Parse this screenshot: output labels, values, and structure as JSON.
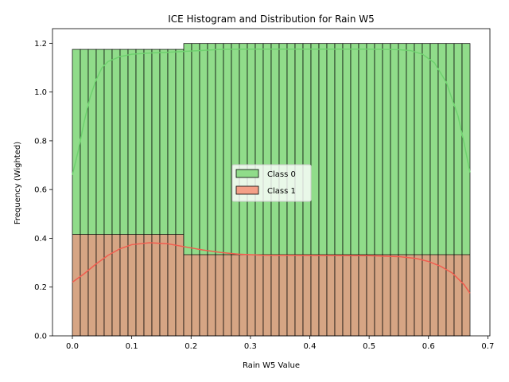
{
  "chart_data": {
    "type": "bar",
    "title": "ICE Histogram and Distribution for Rain W5",
    "xlabel": "Rain W5 Value",
    "ylabel": "Frequency (Wighted)",
    "xlim": [
      -0.0335,
      0.7035
    ],
    "ylim": [
      0,
      1.26
    ],
    "xticks": [
      "0.0",
      "0.1",
      "0.2",
      "0.3",
      "0.4",
      "0.5",
      "0.6",
      "0.7"
    ],
    "xtick_values": [
      0,
      0.1,
      0.2,
      0.3,
      0.4,
      0.5,
      0.6,
      0.7
    ],
    "yticks": [
      "0.0",
      "0.2",
      "0.4",
      "0.6",
      "0.8",
      "1.0",
      "1.2"
    ],
    "ytick_values": [
      0,
      0.2,
      0.4,
      0.6,
      0.8,
      1.0,
      1.2
    ],
    "bins": {
      "start": 0,
      "end": 0.67,
      "count": 50
    },
    "series": [
      {
        "name": "Class 0",
        "color": "#90dc8a",
        "kde_color": "#6fd16f",
        "step_values": [
          {
            "x_from": 0,
            "x_to": 0.1876,
            "value": 1.175
          },
          {
            "x_from": 0.1876,
            "x_to": 0.67,
            "value": 1.199
          }
        ],
        "kde": [
          [
            0.0,
            0.66
          ],
          [
            0.01,
            0.76
          ],
          [
            0.02,
            0.88
          ],
          [
            0.03,
            0.98
          ],
          [
            0.04,
            1.05
          ],
          [
            0.05,
            1.1
          ],
          [
            0.06,
            1.125
          ],
          [
            0.08,
            1.145
          ],
          [
            0.1,
            1.155
          ],
          [
            0.13,
            1.16
          ],
          [
            0.16,
            1.163
          ],
          [
            0.2,
            1.168
          ],
          [
            0.25,
            1.175
          ],
          [
            0.3,
            1.176
          ],
          [
            0.4,
            1.176
          ],
          [
            0.5,
            1.176
          ],
          [
            0.55,
            1.174
          ],
          [
            0.57,
            1.17
          ],
          [
            0.59,
            1.155
          ],
          [
            0.61,
            1.12
          ],
          [
            0.63,
            1.04
          ],
          [
            0.65,
            0.9
          ],
          [
            0.66,
            0.79
          ],
          [
            0.67,
            0.67
          ]
        ]
      },
      {
        "name": "Class 1",
        "color": "#f4a088",
        "kde_color": "#f25d4f",
        "step_values": [
          {
            "x_from": 0,
            "x_to": 0.1876,
            "value": 0.416
          },
          {
            "x_from": 0.1876,
            "x_to": 0.67,
            "value": 0.333
          }
        ],
        "kde": [
          [
            0.0,
            0.22
          ],
          [
            0.02,
            0.255
          ],
          [
            0.04,
            0.295
          ],
          [
            0.06,
            0.33
          ],
          [
            0.08,
            0.357
          ],
          [
            0.1,
            0.374
          ],
          [
            0.13,
            0.382
          ],
          [
            0.16,
            0.378
          ],
          [
            0.19,
            0.365
          ],
          [
            0.22,
            0.352
          ],
          [
            0.25,
            0.342
          ],
          [
            0.28,
            0.335
          ],
          [
            0.32,
            0.331
          ],
          [
            0.4,
            0.33
          ],
          [
            0.5,
            0.329
          ],
          [
            0.55,
            0.325
          ],
          [
            0.58,
            0.317
          ],
          [
            0.6,
            0.305
          ],
          [
            0.62,
            0.286
          ],
          [
            0.64,
            0.258
          ],
          [
            0.66,
            0.21
          ],
          [
            0.67,
            0.175
          ]
        ]
      }
    ],
    "overlap_color": "#d6a584",
    "legend": {
      "position": "center"
    }
  }
}
